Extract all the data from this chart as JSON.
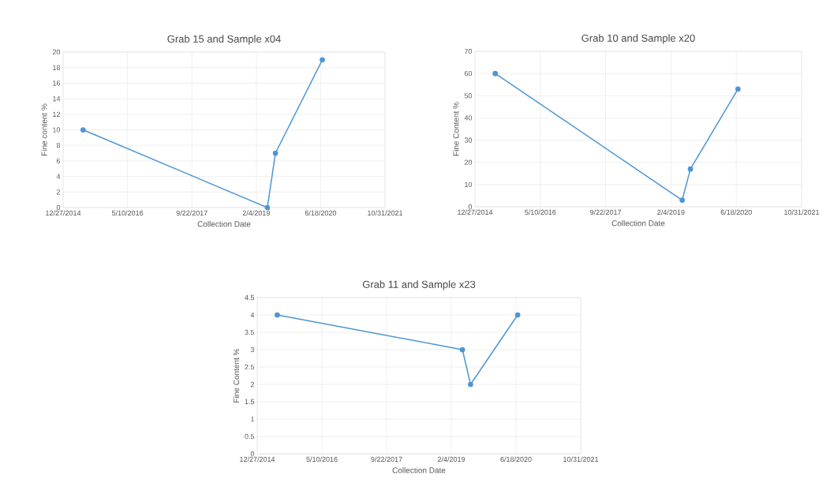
{
  "chart_data": [
    {
      "type": "line",
      "title": "Grab 15 and Sample x04",
      "xlabel": "Collection Date",
      "ylabel": "Fine content %",
      "color": "#4e95d4",
      "marker": "circle",
      "grid": true,
      "x": [
        "2015-05-31",
        "2019-05-01",
        "2019-07-03",
        "2020-07-01"
      ],
      "values": [
        10,
        0,
        7,
        19
      ],
      "xlim": [
        "2014-12-27",
        "2021-10-31"
      ],
      "xticks": [
        {
          "value": "2014-12-27",
          "label": "12/27/2014"
        },
        {
          "value": "2016-05-10",
          "label": "5/10/2016"
        },
        {
          "value": "2017-09-22",
          "label": "9/22/2017"
        },
        {
          "value": "2019-02-04",
          "label": "2/4/2019"
        },
        {
          "value": "2020-06-18",
          "label": "6/18/2020"
        },
        {
          "value": "2021-10-31",
          "label": "10/31/2021"
        }
      ],
      "ylim": [
        0,
        20
      ],
      "yticks": [
        0,
        2,
        4,
        6,
        8,
        10,
        12,
        14,
        16,
        18,
        20
      ]
    },
    {
      "type": "line",
      "title": "Grab 10 and Sample x20",
      "xlabel": "Collection Date",
      "ylabel": "Fine Content %",
      "color": "#4e95d4",
      "marker": "circle",
      "grid": true,
      "x": [
        "2015-05-31",
        "2019-05-01",
        "2019-07-03",
        "2020-07-01"
      ],
      "values": [
        60,
        3,
        17,
        53
      ],
      "xlim": [
        "2014-12-27",
        "2021-10-31"
      ],
      "xticks": [
        {
          "value": "2014-12-27",
          "label": "12/27/2014"
        },
        {
          "value": "2016-05-10",
          "label": "5/10/2016"
        },
        {
          "value": "2017-09-22",
          "label": "9/22/2017"
        },
        {
          "value": "2019-02-04",
          "label": "2/4/2019"
        },
        {
          "value": "2020-06-18",
          "label": "6/18/2020"
        },
        {
          "value": "2021-10-31",
          "label": "10/31/2021"
        }
      ],
      "ylim": [
        0,
        70
      ],
      "yticks": [
        0,
        10,
        20,
        30,
        40,
        50,
        60,
        70
      ]
    },
    {
      "type": "line",
      "title": "Grab 11 and Sample x23",
      "xlabel": "Collection Date",
      "ylabel": "Fine Content %",
      "color": "#4e95d4",
      "marker": "circle",
      "grid": true,
      "x": [
        "2015-05-31",
        "2019-05-01",
        "2019-07-03",
        "2020-07-01"
      ],
      "values": [
        4,
        3,
        2,
        4
      ],
      "xlim": [
        "2014-12-27",
        "2021-10-31"
      ],
      "xticks": [
        {
          "value": "2014-12-27",
          "label": "12/27/2014"
        },
        {
          "value": "2016-05-10",
          "label": "5/10/2016"
        },
        {
          "value": "2017-09-22",
          "label": "9/22/2017"
        },
        {
          "value": "2019-02-04",
          "label": "2/4/2019"
        },
        {
          "value": "2020-06-18",
          "label": "6/18/2020"
        },
        {
          "value": "2021-10-31",
          "label": "10/31/2021"
        }
      ],
      "ylim": [
        0,
        4.5
      ],
      "yticks": [
        0,
        0.5,
        1,
        1.5,
        2,
        2.5,
        3,
        3.5,
        4,
        4.5
      ]
    }
  ]
}
